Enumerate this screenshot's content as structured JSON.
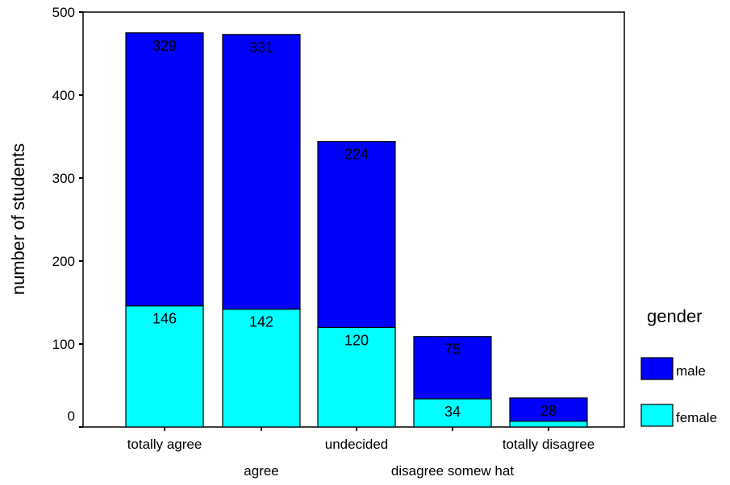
{
  "chart_data": {
    "type": "bar",
    "stacked": true,
    "categories": [
      "totally agree",
      "agree",
      "undecided",
      "disagree somew hat",
      "totally disagree"
    ],
    "series": [
      {
        "name": "female",
        "values": [
          146,
          142,
          120,
          34,
          7
        ],
        "color": "#00FFFF",
        "data_labels": [
          "146",
          "142",
          "120",
          "34",
          ""
        ]
      },
      {
        "name": "male",
        "values": [
          329,
          331,
          224,
          75,
          28
        ],
        "color": "#0000FF",
        "data_labels": [
          "329",
          "331",
          "224",
          "75",
          "28"
        ]
      }
    ],
    "title": "",
    "xlabel": "",
    "ylabel": "number of students",
    "ylim": [
      0,
      500
    ],
    "yticks": [
      0,
      100,
      200,
      300,
      400,
      500
    ],
    "grid": false,
    "legend": {
      "title": "gender",
      "position": "right",
      "entries": [
        "male",
        "female"
      ]
    }
  }
}
